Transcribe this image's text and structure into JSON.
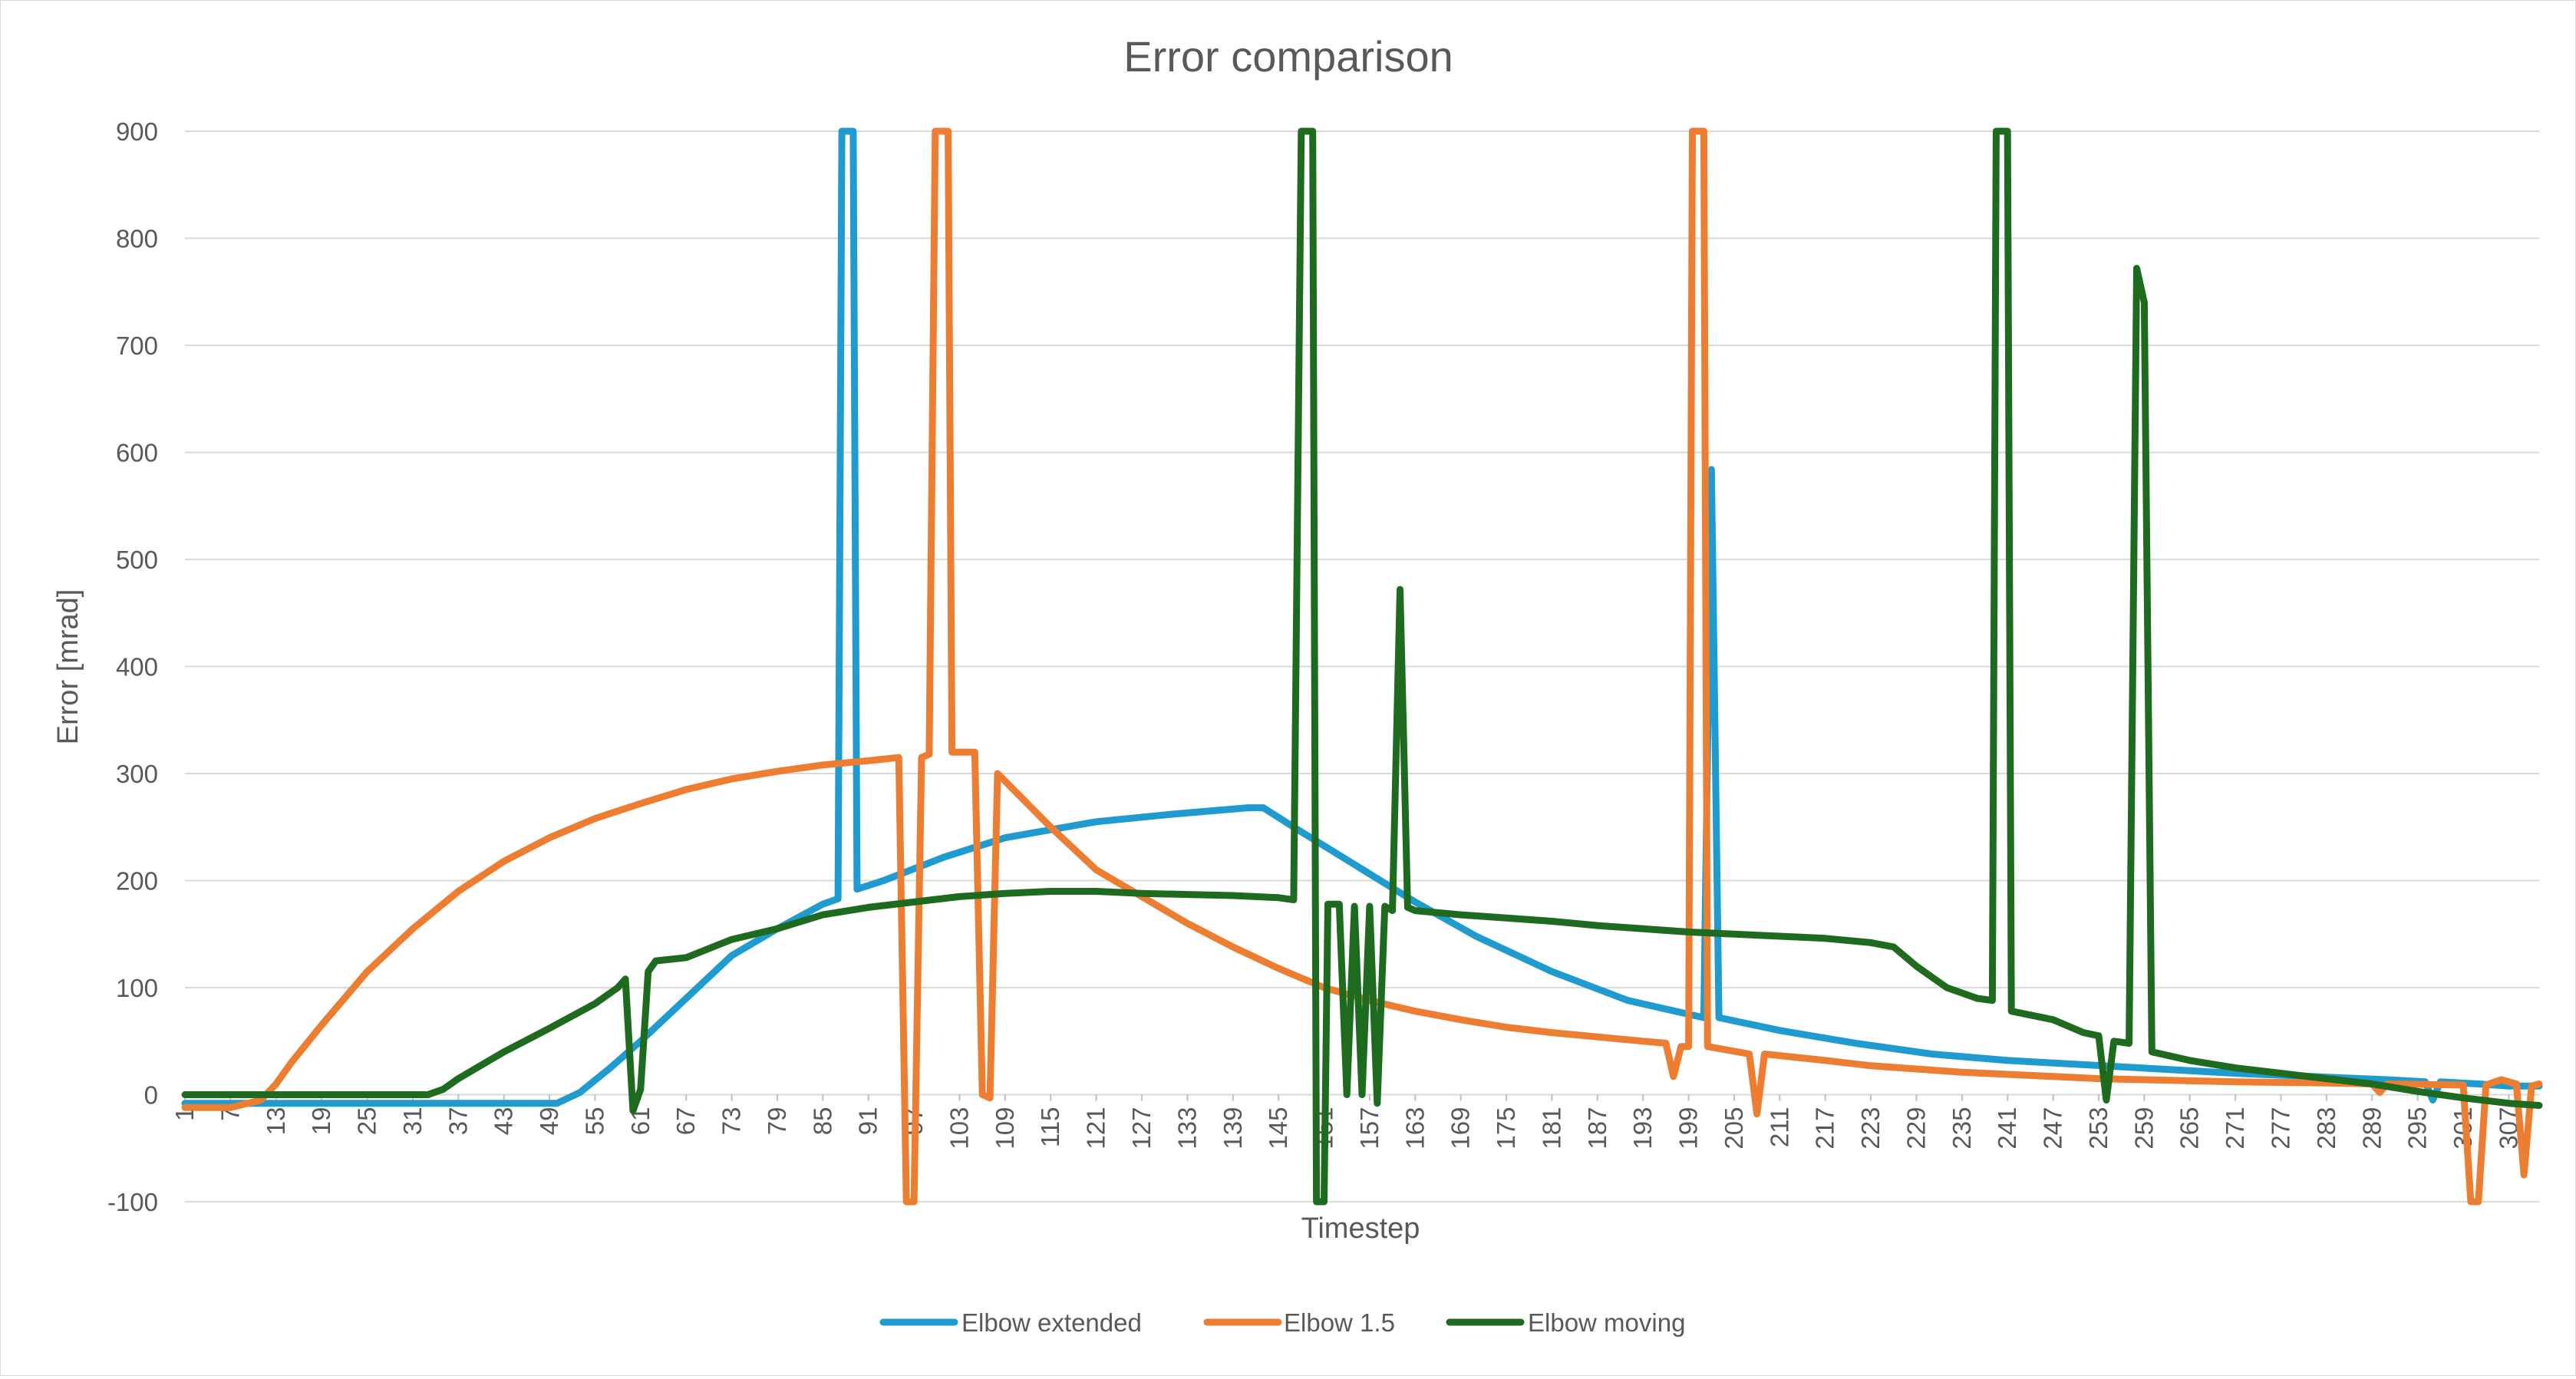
{
  "chart_data": {
    "type": "line",
    "title": "Error comparison",
    "xlabel": "Timestep",
    "ylabel": "Error [mrad]",
    "ylim": [
      -100,
      900
    ],
    "yticks": [
      -100,
      0,
      100,
      200,
      300,
      400,
      500,
      600,
      700,
      800,
      900
    ],
    "xlim": [
      1,
      311
    ],
    "xtick_labels": [
      "1",
      "7",
      "13",
      "19",
      "25",
      "31",
      "37",
      "43",
      "49",
      "55",
      "61",
      "67",
      "73",
      "79",
      "85",
      "91",
      "97",
      "103",
      "109",
      "115",
      "121",
      "127",
      "133",
      "139",
      "145",
      "151",
      "157",
      "163",
      "169",
      "175",
      "181",
      "187",
      "193",
      "199",
      "205",
      "211",
      "217",
      "223",
      "229",
      "235",
      "241",
      "247",
      "253",
      "259",
      "265",
      "271",
      "277",
      "283",
      "289",
      "295",
      "301",
      "307"
    ],
    "grid": true,
    "legend_position": "bottom",
    "series": [
      {
        "name": "Elbow extended",
        "color": "#1f9bd0",
        "points": [
          [
            1,
            -8
          ],
          [
            30,
            -8
          ],
          [
            50,
            -8
          ],
          [
            53,
            2
          ],
          [
            57,
            25
          ],
          [
            61,
            50
          ],
          [
            67,
            90
          ],
          [
            73,
            130
          ],
          [
            79,
            155
          ],
          [
            85,
            178
          ],
          [
            87,
            183
          ],
          [
            87.5,
            900
          ],
          [
            89,
            900
          ],
          [
            89.5,
            192
          ],
          [
            93,
            200
          ],
          [
            101,
            222
          ],
          [
            109,
            240
          ],
          [
            121,
            255
          ],
          [
            131,
            262
          ],
          [
            141,
            268
          ],
          [
            143,
            268
          ],
          [
            147,
            250
          ],
          [
            155,
            215
          ],
          [
            163,
            180
          ],
          [
            171,
            148
          ],
          [
            181,
            115
          ],
          [
            191,
            88
          ],
          [
            201,
            72
          ],
          [
            202,
            584
          ],
          [
            203,
            72
          ],
          [
            211,
            60
          ],
          [
            221,
            48
          ],
          [
            231,
            38
          ],
          [
            241,
            32
          ],
          [
            251,
            28
          ],
          [
            261,
            24
          ],
          [
            271,
            20
          ],
          [
            281,
            17
          ],
          [
            291,
            14
          ],
          [
            296,
            12
          ],
          [
            297,
            -5
          ],
          [
            298,
            12
          ],
          [
            303,
            10
          ],
          [
            307,
            8
          ],
          [
            311,
            8
          ]
        ]
      },
      {
        "name": "Elbow 1.5",
        "color": "#ed7d31",
        "points": [
          [
            1,
            -12
          ],
          [
            7,
            -12
          ],
          [
            11,
            -5
          ],
          [
            13,
            10
          ],
          [
            15,
            30
          ],
          [
            19,
            65
          ],
          [
            25,
            115
          ],
          [
            31,
            155
          ],
          [
            37,
            190
          ],
          [
            43,
            218
          ],
          [
            49,
            240
          ],
          [
            55,
            258
          ],
          [
            61,
            272
          ],
          [
            67,
            285
          ],
          [
            73,
            295
          ],
          [
            79,
            302
          ],
          [
            85,
            308
          ],
          [
            91,
            312
          ],
          [
            95,
            315
          ],
          [
            96,
            -100
          ],
          [
            97,
            -100
          ],
          [
            98,
            315
          ],
          [
            99,
            318
          ],
          [
            99.8,
            900
          ],
          [
            101.5,
            900
          ],
          [
            102,
            320
          ],
          [
            105,
            320
          ],
          [
            106,
            0
          ],
          [
            107,
            -3
          ],
          [
            108,
            300
          ],
          [
            115,
            250
          ],
          [
            121,
            210
          ],
          [
            127,
            185
          ],
          [
            133,
            160
          ],
          [
            139,
            138
          ],
          [
            145,
            118
          ],
          [
            151,
            100
          ],
          [
            157,
            88
          ],
          [
            163,
            78
          ],
          [
            169,
            70
          ],
          [
            175,
            63
          ],
          [
            181,
            58
          ],
          [
            187,
            54
          ],
          [
            193,
            50
          ],
          [
            196,
            48
          ],
          [
            197,
            17
          ],
          [
            198,
            45
          ],
          [
            199,
            45
          ],
          [
            199.5,
            900
          ],
          [
            201,
            900
          ],
          [
            201.5,
            45
          ],
          [
            207,
            38
          ],
          [
            208,
            -18
          ],
          [
            209,
            38
          ],
          [
            217,
            32
          ],
          [
            223,
            27
          ],
          [
            229,
            24
          ],
          [
            235,
            21
          ],
          [
            241,
            19
          ],
          [
            247,
            17
          ],
          [
            253,
            15
          ],
          [
            259,
            14
          ],
          [
            271,
            12
          ],
          [
            283,
            11
          ],
          [
            289,
            10
          ],
          [
            290,
            2
          ],
          [
            291,
            10
          ],
          [
            301,
            9
          ],
          [
            302,
            -100
          ],
          [
            303,
            -100
          ],
          [
            304,
            9
          ],
          [
            306,
            14
          ],
          [
            308,
            10
          ],
          [
            309,
            -75
          ],
          [
            310,
            8
          ],
          [
            311,
            10
          ]
        ]
      },
      {
        "name": "Elbow moving",
        "color": "#1e6b20",
        "points": [
          [
            1,
            0
          ],
          [
            33,
            0
          ],
          [
            35,
            5
          ],
          [
            37,
            15
          ],
          [
            43,
            40
          ],
          [
            49,
            62
          ],
          [
            55,
            85
          ],
          [
            58,
            100
          ],
          [
            59,
            108
          ],
          [
            60,
            -15
          ],
          [
            61,
            5
          ],
          [
            62,
            115
          ],
          [
            63,
            125
          ],
          [
            67,
            128
          ],
          [
            73,
            145
          ],
          [
            79,
            155
          ],
          [
            85,
            168
          ],
          [
            91,
            175
          ],
          [
            97,
            180
          ],
          [
            103,
            185
          ],
          [
            109,
            188
          ],
          [
            115,
            190
          ],
          [
            121,
            190
          ],
          [
            127,
            188
          ],
          [
            133,
            187
          ],
          [
            139,
            186
          ],
          [
            145,
            184
          ],
          [
            147,
            182
          ],
          [
            148,
            900
          ],
          [
            149.5,
            900
          ],
          [
            150,
            -100
          ],
          [
            151,
            -100
          ],
          [
            151.5,
            178
          ],
          [
            153,
            178
          ],
          [
            154,
            0
          ],
          [
            155,
            176
          ],
          [
            156,
            0
          ],
          [
            157,
            176
          ],
          [
            158,
            -8
          ],
          [
            159,
            176
          ],
          [
            160,
            172
          ],
          [
            161,
            472
          ],
          [
            162,
            175
          ],
          [
            163,
            172
          ],
          [
            169,
            168
          ],
          [
            175,
            165
          ],
          [
            181,
            162
          ],
          [
            187,
            158
          ],
          [
            193,
            155
          ],
          [
            199,
            152
          ],
          [
            205,
            150
          ],
          [
            211,
            148
          ],
          [
            217,
            146
          ],
          [
            223,
            142
          ],
          [
            226,
            138
          ],
          [
            229,
            120
          ],
          [
            233,
            100
          ],
          [
            237,
            90
          ],
          [
            239,
            88
          ],
          [
            239.5,
            900
          ],
          [
            241,
            900
          ],
          [
            241.5,
            78
          ],
          [
            247,
            70
          ],
          [
            251,
            58
          ],
          [
            253,
            55
          ],
          [
            254,
            -5
          ],
          [
            255,
            50
          ],
          [
            257,
            48
          ],
          [
            258,
            772
          ],
          [
            259,
            740
          ],
          [
            260,
            40
          ],
          [
            265,
            32
          ],
          [
            271,
            25
          ],
          [
            277,
            20
          ],
          [
            283,
            15
          ],
          [
            289,
            10
          ],
          [
            295,
            3
          ],
          [
            301,
            -3
          ],
          [
            307,
            -8
          ],
          [
            311,
            -10
          ]
        ]
      }
    ]
  }
}
